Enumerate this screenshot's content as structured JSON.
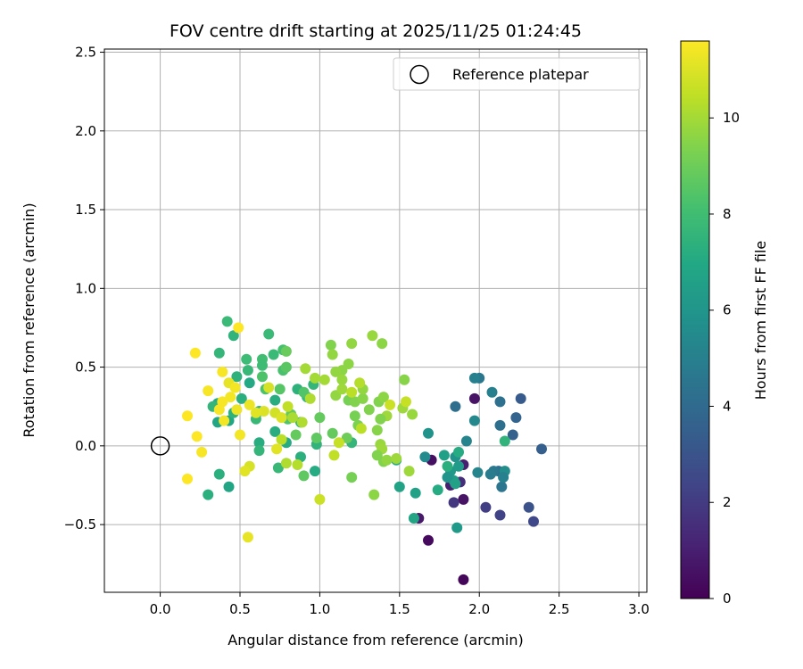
{
  "chart_data": {
    "type": "scatter",
    "title": "FOV centre drift starting at 2025/11/25 01:24:45",
    "xlabel": "Angular distance from reference (arcmin)",
    "ylabel": "Rotation from reference (arcmin)",
    "xlim": [
      -0.35,
      3.05
    ],
    "ylim": [
      -0.93,
      2.52
    ],
    "x_ticks": [
      0.0,
      0.5,
      1.0,
      1.5,
      2.0,
      2.5,
      3.0
    ],
    "x_tick_labels": [
      "0.0",
      "0.5",
      "1.0",
      "1.5",
      "2.0",
      "2.5",
      "3.0"
    ],
    "y_ticks": [
      -0.5,
      0.0,
      0.5,
      1.0,
      1.5,
      2.0,
      2.5
    ],
    "y_tick_labels": [
      "−0.5",
      "0.0",
      "0.5",
      "1.0",
      "1.5",
      "2.0",
      "2.5"
    ],
    "grid": true,
    "legend": {
      "placement": "top-right",
      "entries": [
        "Reference platepar"
      ]
    },
    "reference": {
      "x": 0.0,
      "y": 0.0,
      "label": "Reference platepar"
    },
    "colorbar": {
      "label": "Hours from first FF file",
      "colormap": "viridis",
      "range": [
        0,
        11.6
      ],
      "ticks": [
        0,
        2,
        4,
        6,
        8,
        10
      ],
      "tick_labels": [
        "0",
        "2",
        "4",
        "6",
        "8",
        "10"
      ]
    },
    "points": [
      [
        1.9,
        -0.85,
        0.2
      ],
      [
        1.68,
        -0.6,
        0.3
      ],
      [
        1.62,
        -0.46,
        0.8
      ],
      [
        1.7,
        -0.09,
        0.5
      ],
      [
        1.82,
        -0.25,
        1.0
      ],
      [
        1.9,
        -0.12,
        1.0
      ],
      [
        1.9,
        -0.34,
        0.6
      ],
      [
        1.97,
        0.3,
        0.6
      ],
      [
        1.84,
        -0.36,
        1.8
      ],
      [
        1.88,
        -0.23,
        1.5
      ],
      [
        2.04,
        -0.39,
        2.1
      ],
      [
        2.13,
        -0.44,
        2.3
      ],
      [
        2.31,
        -0.39,
        2.9
      ],
      [
        2.34,
        -0.48,
        2.5
      ],
      [
        2.39,
        -0.02,
        3.5
      ],
      [
        2.26,
        0.3,
        3.3
      ],
      [
        2.23,
        0.18,
        3.7
      ],
      [
        2.21,
        0.07,
        3.6
      ],
      [
        2.13,
        0.13,
        4.2
      ],
      [
        2.12,
        -0.16,
        4.1
      ],
      [
        2.14,
        -0.26,
        4.5
      ],
      [
        2.09,
        -0.16,
        4.6
      ],
      [
        2.07,
        -0.18,
        4.8
      ],
      [
        2.13,
        0.28,
        4.3
      ],
      [
        2.08,
        0.34,
        5.0
      ],
      [
        2.0,
        0.43,
        4.6
      ],
      [
        1.97,
        0.43,
        5.0
      ],
      [
        1.85,
        0.25,
        4.2
      ],
      [
        1.92,
        0.03,
        5.2
      ],
      [
        1.97,
        0.16,
        5.4
      ],
      [
        1.99,
        -0.17,
        5.2
      ],
      [
        2.16,
        -0.16,
        5.6
      ],
      [
        2.15,
        -0.2,
        5.0
      ],
      [
        1.68,
        0.08,
        5.9
      ],
      [
        1.66,
        -0.07,
        5.5
      ],
      [
        1.85,
        -0.07,
        5.9
      ],
      [
        1.82,
        -0.16,
        6.2
      ],
      [
        1.84,
        -0.22,
        6.4
      ],
      [
        1.78,
        -0.06,
        6.5
      ],
      [
        1.8,
        -0.2,
        6.0
      ],
      [
        1.85,
        -0.24,
        6.6
      ],
      [
        1.87,
        -0.13,
        6.3
      ],
      [
        1.86,
        -0.52,
        6.2
      ],
      [
        1.6,
        -0.3,
        6.6
      ],
      [
        1.59,
        -0.46,
        6.8
      ],
      [
        1.5,
        -0.26,
        6.7
      ],
      [
        1.74,
        -0.28,
        7.1
      ],
      [
        1.87,
        -0.04,
        7.1
      ],
      [
        1.8,
        -0.13,
        7.3
      ],
      [
        2.16,
        0.03,
        7.5
      ],
      [
        1.48,
        -0.09,
        7.2
      ],
      [
        0.3,
        -0.31,
        7.3
      ],
      [
        0.43,
        -0.26,
        6.8
      ],
      [
        0.37,
        -0.18,
        7.3
      ],
      [
        0.36,
        0.15,
        6.8
      ],
      [
        0.36,
        0.27,
        7.1
      ],
      [
        0.33,
        0.25,
        7.6
      ],
      [
        0.43,
        0.16,
        6.9
      ],
      [
        0.46,
        0.21,
        7.4
      ],
      [
        0.51,
        0.3,
        7.3
      ],
      [
        0.56,
        0.4,
        7.0
      ],
      [
        0.55,
        0.48,
        7.7
      ],
      [
        0.48,
        0.44,
        7.4
      ],
      [
        0.62,
        0.22,
        7.5
      ],
      [
        0.6,
        0.17,
        7.7
      ],
      [
        0.62,
        0.02,
        7.2
      ],
      [
        0.62,
        -0.03,
        7.6
      ],
      [
        0.72,
        0.29,
        7.2
      ],
      [
        0.72,
        0.09,
        7.2
      ],
      [
        0.79,
        0.02,
        7.1
      ],
      [
        0.74,
        -0.14,
        7.7
      ],
      [
        0.88,
        0.15,
        7.6
      ],
      [
        0.88,
        -0.07,
        7.3
      ],
      [
        0.98,
        0.01,
        7.5
      ],
      [
        0.97,
        -0.16,
        7.1
      ],
      [
        0.86,
        0.36,
        7.4
      ],
      [
        0.92,
        0.31,
        7.7
      ],
      [
        0.96,
        0.39,
        7.6
      ],
      [
        1.2,
        0.02,
        7.6
      ],
      [
        0.64,
        0.55,
        8.0
      ],
      [
        0.64,
        0.51,
        7.9
      ],
      [
        0.71,
        0.58,
        7.8
      ],
      [
        0.77,
        0.61,
        8.1
      ],
      [
        0.68,
        0.71,
        7.8
      ],
      [
        0.54,
        0.55,
        7.9
      ],
      [
        0.46,
        0.7,
        7.5
      ],
      [
        0.42,
        0.79,
        7.8
      ],
      [
        0.37,
        0.59,
        7.6
      ],
      [
        0.64,
        0.44,
        8.3
      ],
      [
        0.66,
        0.36,
        8.3
      ],
      [
        0.77,
        0.48,
        8.2
      ],
      [
        0.79,
        0.5,
        8.6
      ],
      [
        0.8,
        0.17,
        8.4
      ],
      [
        0.75,
        0.36,
        8.5
      ],
      [
        0.79,
        0.6,
        8.9
      ],
      [
        0.9,
        0.34,
        8.4
      ],
      [
        0.82,
        0.2,
        8.8
      ],
      [
        0.85,
        0.07,
        8.8
      ],
      [
        0.9,
        -0.19,
        8.7
      ],
      [
        0.98,
        0.05,
        8.7
      ],
      [
        1.0,
        0.18,
        8.8
      ],
      [
        1.08,
        0.08,
        8.8
      ],
      [
        1.17,
        0.05,
        9.0
      ],
      [
        1.2,
        -0.2,
        9.2
      ],
      [
        1.22,
        0.19,
        9.2
      ],
      [
        1.24,
        0.13,
        9.3
      ],
      [
        1.18,
        0.29,
        9.2
      ],
      [
        1.22,
        0.28,
        9.4
      ],
      [
        1.27,
        0.3,
        9.5
      ],
      [
        1.31,
        0.23,
        9.4
      ],
      [
        1.27,
        0.36,
        9.7
      ],
      [
        1.14,
        0.48,
        9.6
      ],
      [
        1.18,
        0.52,
        9.6
      ],
      [
        1.07,
        0.64,
        9.4
      ],
      [
        1.08,
        0.58,
        9.7
      ],
      [
        1.2,
        0.65,
        9.7
      ],
      [
        1.33,
        0.7,
        9.8
      ],
      [
        1.39,
        0.65,
        9.6
      ],
      [
        1.37,
        0.28,
        9.4
      ],
      [
        1.4,
        0.31,
        9.6
      ],
      [
        1.42,
        0.19,
        9.9
      ],
      [
        1.38,
        0.17,
        9.4
      ],
      [
        1.36,
        0.1,
        9.5
      ],
      [
        1.38,
        0.01,
        9.8
      ],
      [
        1.39,
        -0.02,
        9.9
      ],
      [
        1.36,
        -0.06,
        9.4
      ],
      [
        1.4,
        -0.1,
        9.4
      ],
      [
        1.42,
        -0.09,
        9.7
      ],
      [
        1.48,
        -0.08,
        9.9
      ],
      [
        1.52,
        0.24,
        9.9
      ],
      [
        1.53,
        0.42,
        9.5
      ],
      [
        1.56,
        -0.16,
        9.9
      ],
      [
        1.58,
        0.2,
        9.8
      ],
      [
        1.34,
        -0.31,
        9.6
      ],
      [
        1.1,
        0.47,
        9.7
      ],
      [
        1.14,
        0.42,
        9.8
      ],
      [
        1.1,
        0.32,
        9.7
      ],
      [
        1.14,
        0.36,
        9.9
      ],
      [
        0.97,
        0.43,
        10.0
      ],
      [
        1.03,
        0.42,
        10.0
      ],
      [
        0.91,
        0.49,
        10.0
      ],
      [
        0.94,
        0.3,
        10.2
      ],
      [
        0.89,
        0.15,
        10.2
      ],
      [
        0.83,
        0.18,
        10.1
      ],
      [
        0.86,
        -0.12,
        10.3
      ],
      [
        0.79,
        -0.11,
        10.2
      ],
      [
        0.76,
        0.04,
        10.4
      ],
      [
        0.8,
        0.25,
        10.5
      ],
      [
        1.0,
        -0.34,
        10.7
      ],
      [
        1.09,
        -0.06,
        10.5
      ],
      [
        1.12,
        0.02,
        10.6
      ],
      [
        1.2,
        0.34,
        10.4
      ],
      [
        1.25,
        0.4,
        10.3
      ],
      [
        1.26,
        0.11,
        10.4
      ],
      [
        1.44,
        0.26,
        10.7
      ],
      [
        1.54,
        0.28,
        10.6
      ],
      [
        0.68,
        0.37,
        10.9
      ],
      [
        0.72,
        0.21,
        10.8
      ],
      [
        0.76,
        0.18,
        11.0
      ],
      [
        0.73,
        -0.02,
        11.1
      ],
      [
        0.56,
        -0.13,
        10.9
      ],
      [
        0.53,
        -0.16,
        11.1
      ],
      [
        0.55,
        -0.58,
        11.2
      ],
      [
        0.65,
        0.22,
        11.0
      ],
      [
        0.6,
        0.21,
        11.1
      ],
      [
        0.56,
        0.26,
        11.3
      ],
      [
        0.48,
        0.23,
        11.3
      ],
      [
        0.5,
        0.07,
        11.4
      ],
      [
        0.43,
        0.4,
        11.2
      ],
      [
        0.47,
        0.37,
        11.4
      ],
      [
        0.44,
        0.31,
        11.4
      ],
      [
        0.39,
        0.28,
        11.5
      ],
      [
        0.39,
        0.47,
        11.5
      ],
      [
        0.49,
        0.75,
        11.6
      ],
      [
        0.22,
        0.59,
        11.6
      ],
      [
        0.3,
        0.35,
        11.5
      ],
      [
        0.37,
        0.23,
        11.5
      ],
      [
        0.4,
        0.16,
        11.4
      ],
      [
        0.17,
        0.19,
        11.6
      ],
      [
        0.23,
        0.06,
        11.6
      ],
      [
        0.26,
        -0.04,
        11.5
      ],
      [
        0.17,
        -0.21,
        11.6
      ]
    ]
  }
}
